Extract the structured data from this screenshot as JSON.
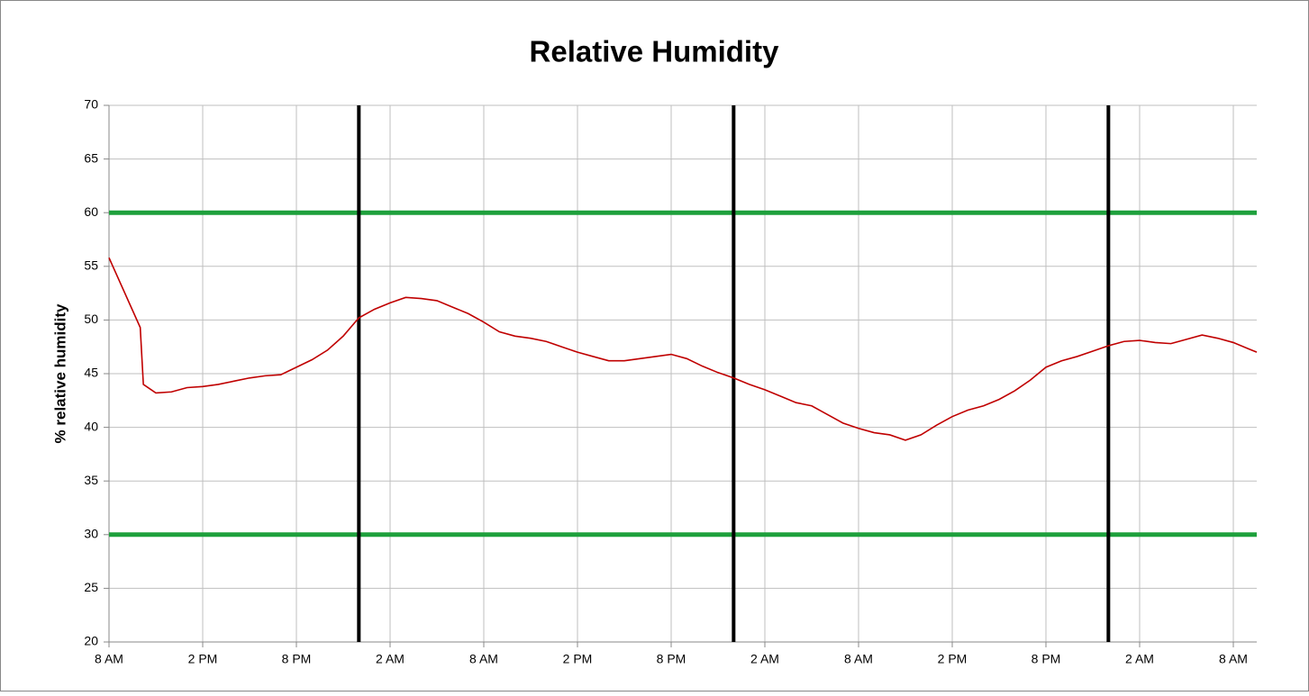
{
  "chart_data": {
    "type": "line",
    "title": "Relative Humidity",
    "y_label": "% relative humidity",
    "x": [
      0,
      2,
      2.2,
      3,
      4,
      5,
      6,
      7,
      8,
      9,
      10,
      11,
      12,
      13,
      14,
      15,
      16,
      17,
      18,
      19,
      20,
      21,
      22,
      23,
      24,
      25,
      26,
      27,
      28,
      29,
      30,
      31,
      32,
      33,
      34,
      35,
      36,
      37,
      38,
      39,
      40,
      41,
      42,
      43,
      44,
      45,
      46,
      47,
      48,
      49,
      50,
      51,
      52,
      53,
      54,
      55,
      56,
      57,
      58,
      59,
      60,
      61,
      62,
      63,
      64,
      65,
      66,
      67,
      68,
      69,
      70,
      71,
      72,
      73,
      73.5
    ],
    "series": [
      {
        "color": "#c00000",
        "values": [
          55.8,
          49.3,
          44,
          43.2,
          43.3,
          43.7,
          43.8,
          44.0,
          44.3,
          44.6,
          44.8,
          44.9,
          45.6,
          46.3,
          47.2,
          48.5,
          50.2,
          51.0,
          51.6,
          52.1,
          52.0,
          51.8,
          51.2,
          50.6,
          49.8,
          48.9,
          48.5,
          48.3,
          48.0,
          47.5,
          47.0,
          46.6,
          46.2,
          46.2,
          46.4,
          46.6,
          46.8,
          46.4,
          45.7,
          45.1,
          44.6,
          44.0,
          43.5,
          42.9,
          42.3,
          42.0,
          41.2,
          40.4,
          39.9,
          39.5,
          39.3,
          38.8,
          39.3,
          40.2,
          41.0,
          41.6,
          42.0,
          42.6,
          43.4,
          44.4,
          45.6,
          46.2,
          46.6,
          47.1,
          47.6,
          48.0,
          48.1,
          47.9,
          47.8,
          48.2,
          48.6,
          48.3,
          47.9,
          47.3,
          47.0
        ]
      }
    ],
    "xlim": [
      0,
      73.5
    ],
    "xticks": [
      {
        "value": 0,
        "label": "8 AM"
      },
      {
        "value": 6,
        "label": "2 PM"
      },
      {
        "value": 12,
        "label": "8 PM"
      },
      {
        "value": 18,
        "label": "2 AM"
      },
      {
        "value": 24,
        "label": "8 AM"
      },
      {
        "value": 30,
        "label": "2 PM"
      },
      {
        "value": 36,
        "label": "8 PM"
      },
      {
        "value": 42,
        "label": "2 AM"
      },
      {
        "value": 48,
        "label": "8 AM"
      },
      {
        "value": 54,
        "label": "2 PM"
      },
      {
        "value": 60,
        "label": "8 PM"
      },
      {
        "value": 66,
        "label": "2 AM"
      },
      {
        "value": 72,
        "label": "8 AM"
      }
    ],
    "ylim": [
      20,
      70
    ],
    "yticks": [
      20,
      25,
      30,
      35,
      40,
      45,
      50,
      55,
      60,
      65,
      70
    ],
    "grid": true,
    "reference_lines": {
      "color": "#1ea03c",
      "values": [
        30,
        60
      ]
    },
    "vertical_lines": {
      "color": "#000000",
      "values": [
        16,
        40,
        64
      ]
    }
  }
}
